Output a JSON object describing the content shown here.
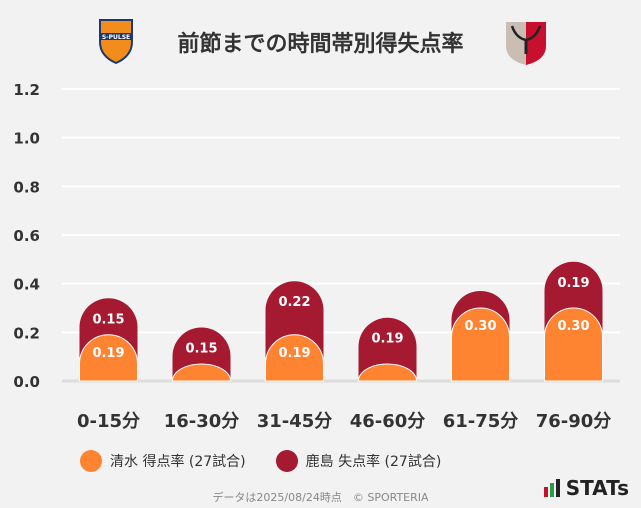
{
  "chart_data": {
    "type": "bar",
    "stacked": true,
    "title": "前節までの時間帯別得失点率",
    "categories": [
      "0-15分",
      "16-30分",
      "31-45分",
      "46-60分",
      "61-75分",
      "76-90分"
    ],
    "series": [
      {
        "name": "清水 得点率 (27試合)",
        "color": "#ff8432",
        "values": [
          0.19,
          0.07,
          0.19,
          0.07,
          0.3,
          0.3
        ],
        "labels": [
          "0.19",
          "",
          "0.19",
          "",
          "0.30",
          "0.30"
        ]
      },
      {
        "name": "鹿島 失点率 (27試合)",
        "color": "#a51931",
        "values": [
          0.15,
          0.15,
          0.22,
          0.19,
          0.07,
          0.19
        ],
        "labels": [
          "0.15",
          "0.15",
          "0.22",
          "0.19",
          "",
          "0.19"
        ]
      }
    ],
    "yticks": [
      "0.0",
      "0.2",
      "0.4",
      "0.6",
      "0.8",
      "1.0",
      "1.2"
    ],
    "ylim": [
      0,
      1.2
    ],
    "grid": true,
    "legend": "bottom"
  },
  "logos": {
    "home": "S-PULSE",
    "away": "Antlers"
  },
  "footer": "データは2025/08/24時点　© SPORTERIA",
  "brand": "STATs"
}
